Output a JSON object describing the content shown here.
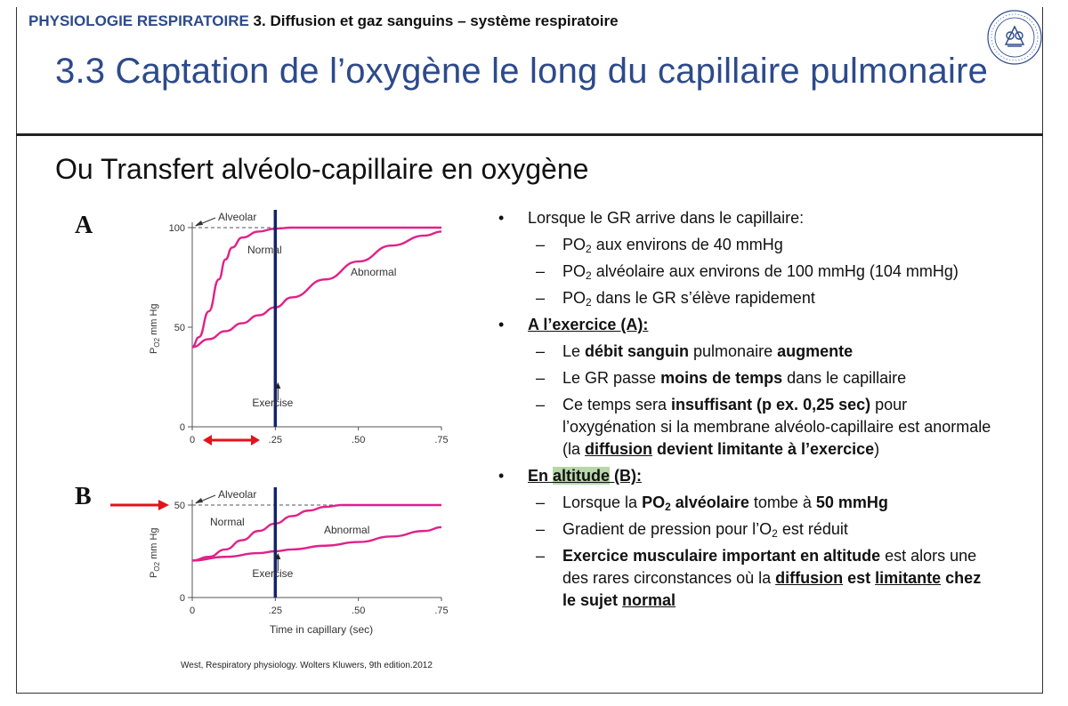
{
  "header": {
    "deck": "PHYSIOLOGIE RESPIRATOIRE",
    "section": "3. Diffusion et gaz sanguins – système respiratoire"
  },
  "title": "3.3 Captation de l’oxygène le long du capillaire pulmonaire",
  "subtitle": "Ou Transfert alvéolo-capillaire en oxygène",
  "citation": "West, Respiratory physiology. Wolters Kluwers, 9th edition.2012",
  "chart_data": [
    {
      "type": "line",
      "panel_label": "A",
      "ylabel": "P_O2 mm Hg",
      "xlabel": "",
      "x_ticks": [
        "0",
        ".25",
        ".50",
        ".75"
      ],
      "y_ticks": [
        "0",
        "50",
        "100"
      ],
      "xlim": [
        0,
        0.75
      ],
      "ylim": [
        0,
        100
      ],
      "reference_line": {
        "label": "Alveolar",
        "y": 100
      },
      "vertical_marker": {
        "x": 0.25,
        "label": "Exercise"
      },
      "series": [
        {
          "name": "Normal",
          "color": "#e0218a",
          "x": [
            0,
            0.02,
            0.05,
            0.08,
            0.1,
            0.12,
            0.15,
            0.2,
            0.25,
            0.3,
            0.75
          ],
          "y": [
            40,
            45,
            58,
            74,
            84,
            90,
            95,
            98,
            99.5,
            100,
            100
          ]
        },
        {
          "name": "Abnormal",
          "color": "#e0218a",
          "x": [
            0,
            0.05,
            0.1,
            0.15,
            0.2,
            0.25,
            0.3,
            0.4,
            0.5,
            0.6,
            0.7,
            0.75
          ],
          "y": [
            40,
            44,
            48,
            52,
            56,
            60,
            65,
            74,
            83,
            91,
            96,
            98
          ]
        }
      ],
      "annotations": [
        "Alveolar",
        "Normal",
        "Abnormal",
        "Exercise"
      ]
    },
    {
      "type": "line",
      "panel_label": "B",
      "ylabel": "P_O2 mm Hg",
      "xlabel": "Time in capillary (sec)",
      "x_ticks": [
        "0",
        ".25",
        ".50",
        ".75"
      ],
      "y_ticks": [
        "0",
        "50"
      ],
      "xlim": [
        0,
        0.75
      ],
      "ylim": [
        0,
        50
      ],
      "reference_line": {
        "label": "Alveolar",
        "y": 50
      },
      "vertical_marker": {
        "x": 0.25,
        "label": "Exercise"
      },
      "series": [
        {
          "name": "Normal",
          "color": "#e0218a",
          "x": [
            0,
            0.05,
            0.1,
            0.15,
            0.2,
            0.25,
            0.3,
            0.35,
            0.4,
            0.45,
            0.75
          ],
          "y": [
            20,
            22,
            26,
            31,
            36,
            40,
            44,
            47,
            49,
            50,
            50
          ]
        },
        {
          "name": "Abnormal",
          "color": "#e0218a",
          "x": [
            0,
            0.1,
            0.2,
            0.25,
            0.3,
            0.4,
            0.5,
            0.6,
            0.7,
            0.75
          ],
          "y": [
            20,
            22,
            24,
            25,
            26,
            28,
            30,
            33,
            36,
            38
          ]
        }
      ],
      "annotations": [
        "Alveolar",
        "Normal",
        "Abnormal",
        "Exercise"
      ]
    }
  ],
  "bullets": {
    "b1": "Lorsque le GR arrive dans le capillaire:",
    "b1_s1_a": "PO",
    "b1_s1_sub": "2",
    "b1_s1_b": " aux environs de 40 mmHg",
    "b1_s2_a": "PO",
    "b1_s2_sub": "2",
    "b1_s2_b": " alvéolaire aux environs de 100 mmHg (104 mmHg)",
    "b1_s3_a": "PO",
    "b1_s3_sub": "2",
    "b1_s3_b": " dans le GR s’élève rapidement",
    "b2": "A l’exercice (A):",
    "b2_s1": [
      "Le ",
      "débit sanguin",
      " pulmonaire ",
      "augmente"
    ],
    "b2_s2": [
      "Le GR passe ",
      "moins de temps",
      " dans le capillaire"
    ],
    "b2_s3": [
      "Ce temps sera ",
      "insuffisant (p ex. 0,25 sec)",
      " pour l’oxygénation si la membrane alvéolo-capillaire est anormale (la ",
      "diffusion",
      " devient limitante à l’exercice",
      ")"
    ],
    "b3_pre": "En ",
    "b3_hl": "altitude",
    "b3_post": " (B):",
    "b3_s1": [
      "Lorsque la ",
      "PO",
      "2",
      " alvéolaire",
      " tombe à ",
      "50 mmHg"
    ],
    "b3_s2": [
      "Gradient de pression pour l’O",
      "2",
      " est réduit"
    ],
    "b3_s3": [
      "Exercice musculaire important en altitude",
      " est alors une des rares circonstances où la ",
      "diffusion",
      " ",
      "est ",
      "limitante",
      " chez le sujet ",
      "normal"
    ]
  },
  "colors": {
    "title_blue": "#2d4a8a",
    "curve_magenta": "#e0218a",
    "marker_navy": "#14226b",
    "arrow_red": "#e3121b",
    "highlight_green": "#b7d7a8"
  }
}
